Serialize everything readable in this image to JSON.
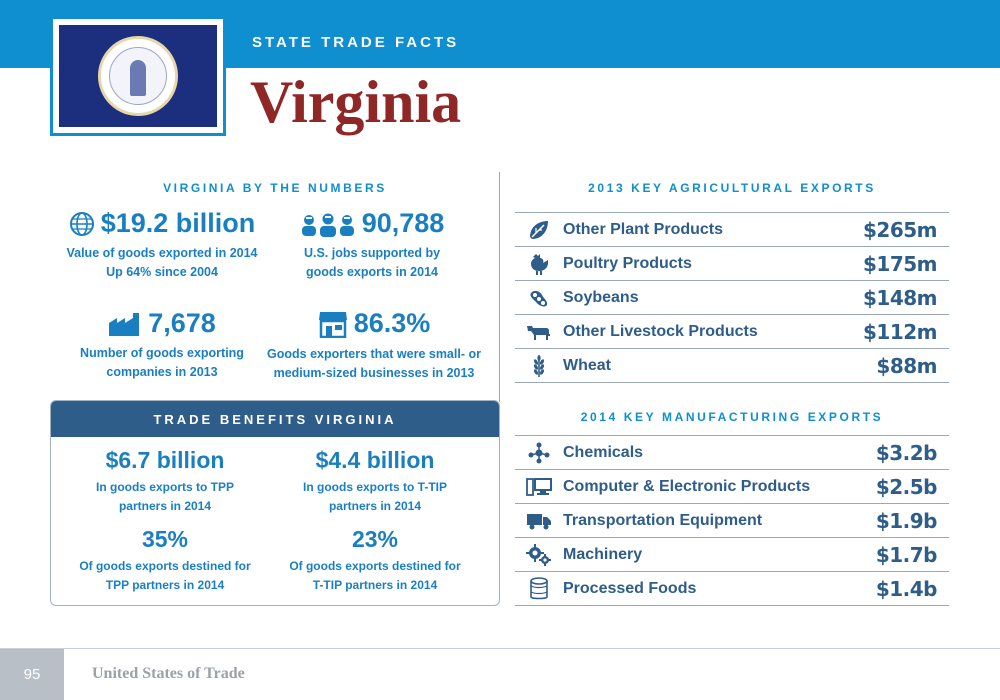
{
  "header": {
    "kicker": "STATE TRADE FACTS",
    "state_name": "Virginia"
  },
  "by_numbers": {
    "title": "VIRGINIA BY THE NUMBERS",
    "stats": [
      {
        "value": "$19.2 billion",
        "line1": "Value of goods exported in 2014",
        "line2": "Up 64% since 2004",
        "icon": "globe-icon"
      },
      {
        "value": "90,788",
        "line1": "U.S. jobs supported by",
        "line2": "goods exports in 2014",
        "icon": "workers-icon"
      },
      {
        "value": "7,678",
        "line1": "Number of goods exporting",
        "line2": "companies in 2013",
        "icon": "factory-icon"
      },
      {
        "value": "86.3%",
        "line1": "Goods exporters that were small- or",
        "line2": "medium-sized businesses in 2013",
        "icon": "storefront-icon"
      }
    ]
  },
  "trade_benefits": {
    "title": "TRADE BENEFITS VIRGINIA",
    "stats": [
      {
        "value": "$6.7 billion",
        "line1": "In goods exports to TPP",
        "line2": "partners in 2014"
      },
      {
        "value": "$4.4 billion",
        "line1": "In goods exports to T-TIP",
        "line2": "partners in 2014"
      },
      {
        "value": "35%",
        "line1": "Of goods exports destined for",
        "line2": "TPP partners in 2014"
      },
      {
        "value": "23%",
        "line1": "Of goods exports destined for",
        "line2": "T-TIP partners in 2014"
      }
    ]
  },
  "agri_exports": {
    "title": "2013 KEY AGRICULTURAL EXPORTS",
    "items": [
      {
        "label": "Other Plant Products",
        "value": "$265m",
        "icon": "leaf-icon"
      },
      {
        "label": "Poultry Products",
        "value": "$175m",
        "icon": "chicken-icon"
      },
      {
        "label": "Soybeans",
        "value": "$148m",
        "icon": "soybean-icon"
      },
      {
        "label": "Other Livestock Products",
        "value": "$112m",
        "icon": "cow-icon"
      },
      {
        "label": "Wheat",
        "value": "$88m",
        "icon": "wheat-icon"
      }
    ]
  },
  "mfg_exports": {
    "title": "2014 KEY MANUFACTURING EXPORTS",
    "items": [
      {
        "label": "Chemicals",
        "value": "$3.2b",
        "icon": "molecule-icon"
      },
      {
        "label": "Computer & Electronic Products",
        "value": "$2.5b",
        "icon": "computer-icon"
      },
      {
        "label": "Transportation Equipment",
        "value": "$1.9b",
        "icon": "truck-icon"
      },
      {
        "label": "Machinery",
        "value": "$1.7b",
        "icon": "gears-icon"
      },
      {
        "label": "Processed Foods",
        "value": "$1.4b",
        "icon": "can-icon"
      }
    ]
  },
  "footer": {
    "page_number": "95",
    "publication": "United States of Trade"
  },
  "colors": {
    "header_blue": "#0f8fcf",
    "title_red": "#8f2727",
    "navy": "#2f5d8a",
    "stat_blue": "#1a7fc1"
  }
}
